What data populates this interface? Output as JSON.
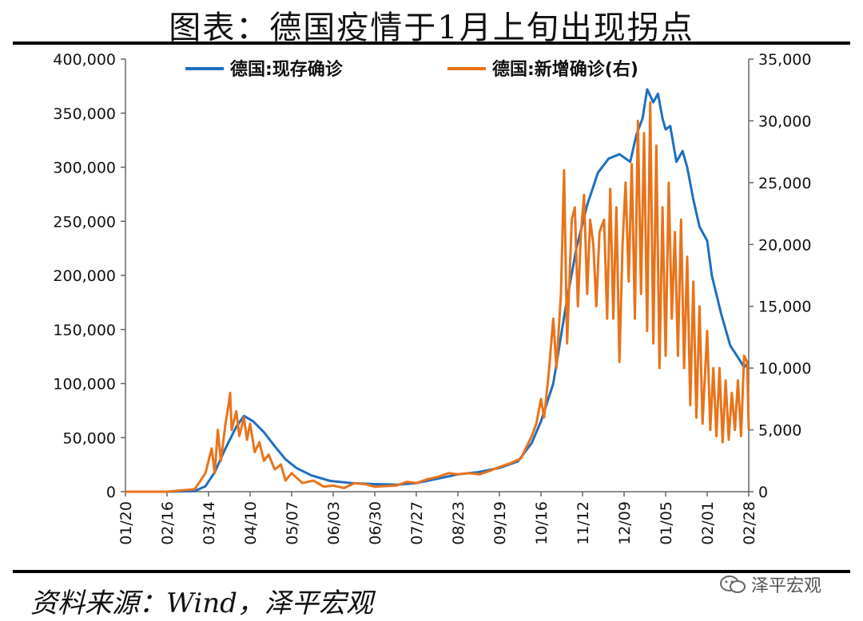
{
  "header": {
    "title": "图表：德国疫情于1月上旬出现拐点"
  },
  "footer": {
    "source": "资料来源：Wind，泽平宏观",
    "watermark": "泽平宏观"
  },
  "colors": {
    "active": "#1f6fbf",
    "new": "#e8731a"
  },
  "chart_data": {
    "type": "line",
    "title": "图表：德国疫情于1月上旬出现拐点",
    "x_axis": {
      "type": "date",
      "range": [
        "2020-01-20",
        "2021-02-28"
      ],
      "ticks": [
        "2020-01-20",
        "2020-02-16",
        "2020-03-14",
        "2020-04-10",
        "2020-05-07",
        "2020-06-03",
        "2020-06-30",
        "2020-07-27",
        "2020-08-23",
        "2020-09-19",
        "2020-10-16",
        "2020-11-12",
        "2020-12-09",
        "2021-01-05",
        "2021-02-01",
        "2021-02-28"
      ],
      "tick_labels": [
        "01/20",
        "02/16",
        "03/14",
        "04/10",
        "05/07",
        "06/03",
        "06/30",
        "07/27",
        "08/23",
        "09/19",
        "10/16",
        "11/12",
        "12/09",
        "01/05",
        "02/01",
        "02/28"
      ]
    },
    "y_left": {
      "ylim": [
        0,
        400000
      ],
      "ticks": [
        0,
        50000,
        100000,
        150000,
        200000,
        250000,
        300000,
        350000,
        400000
      ],
      "tick_labels": [
        "0",
        "50,000",
        "100,000",
        "150,000",
        "200,000",
        "250,000",
        "300,000",
        "350,000",
        "400,000"
      ]
    },
    "y_right": {
      "ylim": [
        0,
        35000
      ],
      "ticks": [
        0,
        5000,
        10000,
        15000,
        20000,
        25000,
        30000,
        35000
      ],
      "tick_labels": [
        "0",
        "5,000",
        "10,000",
        "15,000",
        "20,000",
        "25,000",
        "30,000",
        "35,000"
      ]
    },
    "legend_position": "top",
    "series": [
      {
        "name": "德国:现存确诊",
        "axis": "left",
        "color": "#1f6fbf",
        "points": [
          [
            "2020-01-20",
            0
          ],
          [
            "2020-02-16",
            0
          ],
          [
            "2020-03-05",
            500
          ],
          [
            "2020-03-12",
            5000
          ],
          [
            "2020-03-18",
            18000
          ],
          [
            "2020-03-25",
            40000
          ],
          [
            "2020-04-01",
            60000
          ],
          [
            "2020-04-06",
            70000
          ],
          [
            "2020-04-12",
            65000
          ],
          [
            "2020-04-19",
            55000
          ],
          [
            "2020-04-26",
            42000
          ],
          [
            "2020-05-03",
            30000
          ],
          [
            "2020-05-10",
            22000
          ],
          [
            "2020-05-20",
            15000
          ],
          [
            "2020-06-01",
            10000
          ],
          [
            "2020-06-15",
            8000
          ],
          [
            "2020-06-30",
            7000
          ],
          [
            "2020-07-15",
            6500
          ],
          [
            "2020-07-27",
            8000
          ],
          [
            "2020-08-10",
            12000
          ],
          [
            "2020-08-23",
            16000
          ],
          [
            "2020-09-05",
            18000
          ],
          [
            "2020-09-19",
            22000
          ],
          [
            "2020-10-01",
            28000
          ],
          [
            "2020-10-10",
            45000
          ],
          [
            "2020-10-16",
            65000
          ],
          [
            "2020-10-24",
            100000
          ],
          [
            "2020-11-01",
            170000
          ],
          [
            "2020-11-08",
            225000
          ],
          [
            "2020-11-15",
            265000
          ],
          [
            "2020-11-22",
            295000
          ],
          [
            "2020-11-29",
            308000
          ],
          [
            "2020-12-06",
            312000
          ],
          [
            "2020-12-13",
            305000
          ],
          [
            "2020-12-17",
            330000
          ],
          [
            "2020-12-21",
            345000
          ],
          [
            "2020-12-24",
            372000
          ],
          [
            "2020-12-28",
            360000
          ],
          [
            "2020-12-31",
            368000
          ],
          [
            "2021-01-03",
            345000
          ],
          [
            "2021-01-05",
            335000
          ],
          [
            "2021-01-08",
            338000
          ],
          [
            "2021-01-12",
            305000
          ],
          [
            "2021-01-16",
            315000
          ],
          [
            "2021-01-19",
            300000
          ],
          [
            "2021-01-23",
            270000
          ],
          [
            "2021-01-27",
            245000
          ],
          [
            "2021-02-01",
            232000
          ],
          [
            "2021-02-04",
            200000
          ],
          [
            "2021-02-10",
            165000
          ],
          [
            "2021-02-16",
            135000
          ],
          [
            "2021-02-22",
            122000
          ],
          [
            "2021-02-25",
            115000
          ],
          [
            "2021-02-28",
            120000
          ]
        ]
      },
      {
        "name": "德国:新增确诊(右)",
        "axis": "right",
        "color": "#e8731a",
        "points": [
          [
            "2020-01-20",
            0
          ],
          [
            "2020-02-16",
            0
          ],
          [
            "2020-03-05",
            200
          ],
          [
            "2020-03-12",
            1500
          ],
          [
            "2020-03-16",
            3500
          ],
          [
            "2020-03-18",
            1500
          ],
          [
            "2020-03-20",
            5000
          ],
          [
            "2020-03-22",
            2500
          ],
          [
            "2020-03-25",
            5500
          ],
          [
            "2020-03-27",
            7000
          ],
          [
            "2020-03-28",
            8000
          ],
          [
            "2020-03-29",
            5000
          ],
          [
            "2020-04-01",
            6500
          ],
          [
            "2020-04-03",
            4500
          ],
          [
            "2020-04-06",
            6000
          ],
          [
            "2020-04-08",
            4200
          ],
          [
            "2020-04-10",
            5500
          ],
          [
            "2020-04-13",
            3200
          ],
          [
            "2020-04-16",
            4000
          ],
          [
            "2020-04-19",
            2500
          ],
          [
            "2020-04-22",
            3000
          ],
          [
            "2020-04-26",
            1800
          ],
          [
            "2020-04-30",
            2200
          ],
          [
            "2020-05-03",
            900
          ],
          [
            "2020-05-07",
            1500
          ],
          [
            "2020-05-14",
            700
          ],
          [
            "2020-05-21",
            900
          ],
          [
            "2020-05-28",
            400
          ],
          [
            "2020-06-03",
            500
          ],
          [
            "2020-06-10",
            300
          ],
          [
            "2020-06-17",
            700
          ],
          [
            "2020-06-24",
            600
          ],
          [
            "2020-06-30",
            400
          ],
          [
            "2020-07-07",
            450
          ],
          [
            "2020-07-14",
            500
          ],
          [
            "2020-07-21",
            800
          ],
          [
            "2020-07-27",
            700
          ],
          [
            "2020-08-03",
            1000
          ],
          [
            "2020-08-10",
            1200
          ],
          [
            "2020-08-17",
            1500
          ],
          [
            "2020-08-23",
            1400
          ],
          [
            "2020-08-30",
            1500
          ],
          [
            "2020-09-06",
            1400
          ],
          [
            "2020-09-13",
            1700
          ],
          [
            "2020-09-19",
            2000
          ],
          [
            "2020-09-26",
            2300
          ],
          [
            "2020-10-03",
            2700
          ],
          [
            "2020-10-10",
            4500
          ],
          [
            "2020-10-13",
            5500
          ],
          [
            "2020-10-16",
            7500
          ],
          [
            "2020-10-18",
            6000
          ],
          [
            "2020-10-21",
            9500
          ],
          [
            "2020-10-24",
            14000
          ],
          [
            "2020-10-26",
            10000
          ],
          [
            "2020-10-29",
            16000
          ],
          [
            "2020-10-31",
            26000
          ],
          [
            "2020-11-02",
            12000
          ],
          [
            "2020-11-05",
            22000
          ],
          [
            "2020-11-07",
            23000
          ],
          [
            "2020-11-09",
            15000
          ],
          [
            "2020-11-11",
            21000
          ],
          [
            "2020-11-13",
            24000
          ],
          [
            "2020-11-15",
            16000
          ],
          [
            "2020-11-17",
            22000
          ],
          [
            "2020-11-19",
            20000
          ],
          [
            "2020-11-21",
            15000
          ],
          [
            "2020-11-23",
            21000
          ],
          [
            "2020-11-26",
            22000
          ],
          [
            "2020-11-28",
            14000
          ],
          [
            "2020-11-30",
            24500
          ],
          [
            "2020-12-02",
            14000
          ],
          [
            "2020-12-04",
            23000
          ],
          [
            "2020-12-06",
            10500
          ],
          [
            "2020-12-08",
            20000
          ],
          [
            "2020-12-10",
            25000
          ],
          [
            "2020-12-12",
            17000
          ],
          [
            "2020-12-14",
            26500
          ],
          [
            "2020-12-16",
            14000
          ],
          [
            "2020-12-18",
            30000
          ],
          [
            "2020-12-20",
            16000
          ],
          [
            "2020-12-22",
            29000
          ],
          [
            "2020-12-24",
            13000
          ],
          [
            "2020-12-26",
            31500
          ],
          [
            "2020-12-28",
            12000
          ],
          [
            "2020-12-30",
            28000
          ],
          [
            "2021-01-01",
            10000
          ],
          [
            "2021-01-03",
            23000
          ],
          [
            "2021-01-05",
            11000
          ],
          [
            "2021-01-07",
            25000
          ],
          [
            "2021-01-09",
            14000
          ],
          [
            "2021-01-11",
            21000
          ],
          [
            "2021-01-13",
            11000
          ],
          [
            "2021-01-15",
            22000
          ],
          [
            "2021-01-17",
            10000
          ],
          [
            "2021-01-19",
            19000
          ],
          [
            "2021-01-21",
            7000
          ],
          [
            "2021-01-23",
            17000
          ],
          [
            "2021-01-25",
            6000
          ],
          [
            "2021-01-27",
            15000
          ],
          [
            "2021-01-29",
            5500
          ],
          [
            "2021-02-01",
            13000
          ],
          [
            "2021-02-03",
            5000
          ],
          [
            "2021-02-05",
            10000
          ],
          [
            "2021-02-07",
            4500
          ],
          [
            "2021-02-09",
            10000
          ],
          [
            "2021-02-11",
            4000
          ],
          [
            "2021-02-13",
            9000
          ],
          [
            "2021-02-15",
            4200
          ],
          [
            "2021-02-17",
            8000
          ],
          [
            "2021-02-19",
            5000
          ],
          [
            "2021-02-21",
            9000
          ],
          [
            "2021-02-23",
            4500
          ],
          [
            "2021-02-25",
            11000
          ],
          [
            "2021-02-27",
            10500
          ],
          [
            "2021-02-28",
            5000
          ]
        ]
      }
    ]
  }
}
